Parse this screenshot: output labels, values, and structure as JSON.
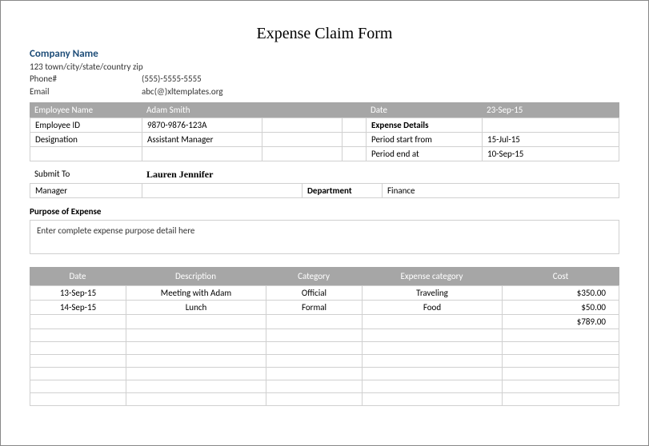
{
  "title": "Expense Claim Form",
  "company": {
    "name": "Company Name",
    "address": "123 town/city/state/country zip",
    "phone_label": "Phone#",
    "phone": "(555)-5555-5555",
    "email_label": "Email",
    "email": "abc(@)xltemplates.org"
  },
  "employee_band": {
    "col1": "Employee Name",
    "col2": "Adam Smith",
    "col4": "Date",
    "col5": "23-Sep-15"
  },
  "employee_rows": [
    {
      "c1": "Employee ID",
      "c2": "9870-9876-123A",
      "c5": "Expense Details",
      "c5_bold": true
    },
    {
      "c1": "Designation",
      "c2": "Assistant Manager",
      "c5": "Period start from",
      "c6": "15-Jul-15"
    },
    {
      "c1": "",
      "c2": "",
      "c5": "Period end at",
      "c6": "10-Sep-15"
    }
  ],
  "submit": {
    "label": "Submit To",
    "value": "Lauren Jennifer"
  },
  "manager_row": {
    "c1": "Manager",
    "c3": "Department",
    "c4": "Finance"
  },
  "purpose_label": "Purpose of Expense",
  "purpose_text": "Enter complete expense purpose detail here",
  "expense_header": {
    "c1": "Date",
    "c2": "Description",
    "c3": "Category",
    "c4": "Expense category",
    "c5": "Cost"
  },
  "expense_rows": [
    {
      "date": "13-Sep-15",
      "desc": "Meeting with Adam",
      "cat": "Official",
      "ecat": "Traveling",
      "cost": "$350.00"
    },
    {
      "date": "14-Sep-15",
      "desc": "Lunch",
      "cat": "Formal",
      "ecat": "Food",
      "cost": "$50.00"
    },
    {
      "date": "",
      "desc": "",
      "cat": "",
      "ecat": "",
      "cost": "$789.00"
    },
    {
      "date": "",
      "desc": "",
      "cat": "",
      "ecat": "",
      "cost": ""
    },
    {
      "date": "",
      "desc": "",
      "cat": "",
      "ecat": "",
      "cost": ""
    },
    {
      "date": "",
      "desc": "",
      "cat": "",
      "ecat": "",
      "cost": ""
    },
    {
      "date": "",
      "desc": "",
      "cat": "",
      "ecat": "",
      "cost": ""
    },
    {
      "date": "",
      "desc": "",
      "cat": "",
      "ecat": "",
      "cost": ""
    },
    {
      "date": "",
      "desc": "",
      "cat": "",
      "ecat": "",
      "cost": ""
    }
  ],
  "colors": {
    "band_bg": "#a6a6a6",
    "band_fg": "#ffffff",
    "border": "#d0d0d0",
    "company_name": "#1f4e79"
  }
}
